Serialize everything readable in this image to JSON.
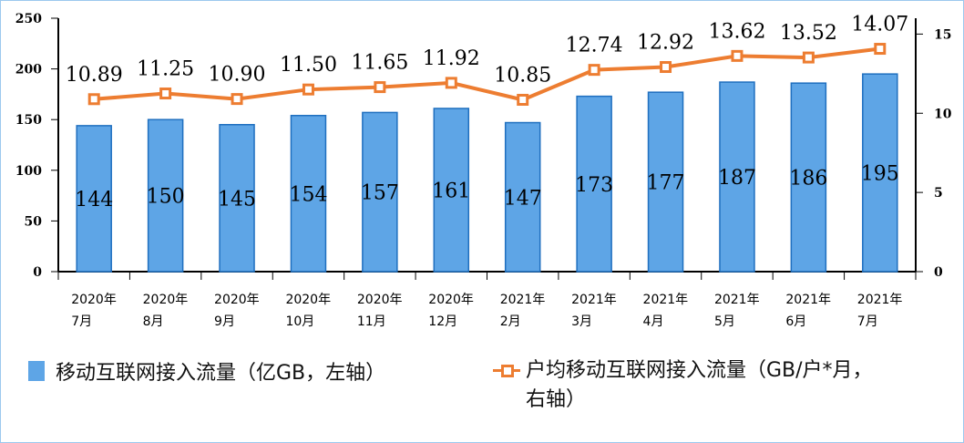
{
  "chart_data": {
    "type": "bar+line",
    "categories": [
      [
        "2020年",
        "7月"
      ],
      [
        "2020年",
        "8月"
      ],
      [
        "2020年",
        "9月"
      ],
      [
        "2020年",
        "10月"
      ],
      [
        "2020年",
        "11月"
      ],
      [
        "2020年",
        "12月"
      ],
      [
        "2021年",
        "2月"
      ],
      [
        "2021年",
        "3月"
      ],
      [
        "2021年",
        "4月"
      ],
      [
        "2021年",
        "5月"
      ],
      [
        "2021年",
        "6月"
      ],
      [
        "2021年",
        "7月"
      ]
    ],
    "series": [
      {
        "name": "移动互联网接入流量（亿GB，左轴）",
        "type": "bar",
        "axis": "left",
        "values": [
          144,
          150,
          145,
          154,
          157,
          161,
          147,
          173,
          177,
          187,
          186,
          195
        ],
        "labels": [
          "144",
          "150",
          "145",
          "154",
          "157",
          "161",
          "147",
          "173",
          "177",
          "187",
          "186",
          "195"
        ],
        "color": "#5ea5e6"
      },
      {
        "name": "户均移动互联网接入流量（GB/户*月，右轴）",
        "type": "line",
        "axis": "right",
        "values": [
          10.89,
          11.25,
          10.9,
          11.5,
          11.65,
          11.92,
          10.85,
          12.74,
          12.92,
          13.62,
          13.52,
          14.07
        ],
        "labels": [
          "10.89",
          "11.25",
          "10.90",
          "11.50",
          "11.65",
          "11.92",
          "10.85",
          "12.74",
          "12.92",
          "13.62",
          "13.52",
          "14.07"
        ],
        "color": "#ed7d31"
      }
    ],
    "left_axis": {
      "ylim": [
        0,
        250
      ],
      "ticks": [
        "0",
        "50",
        "100",
        "150",
        "200",
        "250"
      ]
    },
    "right_axis": {
      "ylim": [
        0,
        16
      ],
      "ticks": [
        "0",
        "5",
        "10",
        "15"
      ]
    },
    "legend_placement": "bottom",
    "legend": {
      "bar": "移动互联网接入流量（亿GB，左轴）",
      "line_1": "户均移动互联网接入流量（GB/户*月，",
      "line_2": "右轴）"
    }
  }
}
